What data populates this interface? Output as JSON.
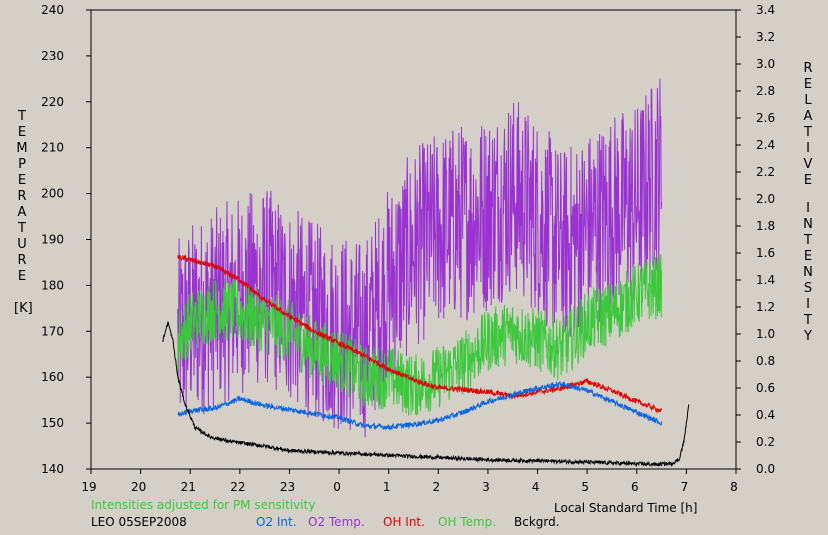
{
  "chart_data": {
    "type": "line",
    "x_axis": {
      "title": "Local Standard Time [h]",
      "ticks": [
        19,
        20,
        21,
        22,
        23,
        0,
        1,
        2,
        3,
        4,
        5,
        6,
        7,
        8
      ],
      "tick_labels": [
        "19",
        "20",
        "21",
        "22",
        "23",
        "0",
        "1",
        "2",
        "3",
        "4",
        "5",
        "6",
        "7",
        "8"
      ],
      "range": [
        19,
        32
      ]
    },
    "y_left": {
      "title_letters": [
        "T",
        "E",
        "M",
        "P",
        "E",
        "R",
        "A",
        "T",
        "U",
        "R",
        "E"
      ],
      "unit": "[K]",
      "ticks": [
        140,
        150,
        160,
        170,
        180,
        190,
        200,
        210,
        220,
        230,
        240
      ],
      "range": [
        140,
        240
      ]
    },
    "y_right": {
      "title_word1": [
        "R",
        "E",
        "L",
        "A",
        "T",
        "I",
        "V",
        "E"
      ],
      "title_word2": [
        "I",
        "N",
        "T",
        "E",
        "N",
        "S",
        "I",
        "T",
        "Y"
      ],
      "ticks": [
        "0.0",
        "0.2",
        "0.4",
        "0.6",
        "0.8",
        "1.0",
        "1.2",
        "1.4",
        "1.6",
        "1.8",
        "2.0",
        "2.2",
        "2.4",
        "2.6",
        "2.8",
        "3.0",
        "3.2",
        "3.4"
      ],
      "range": [
        0,
        3.4
      ]
    },
    "note": "Intensities adjusted for PM sensitivity",
    "station": "LEO 05SEP2008",
    "series": [
      {
        "name": "O2 Int.",
        "color": "#0a64e0",
        "axis": "right",
        "noise": 0.02,
        "x": [
          20.75,
          21.0,
          21.5,
          22.0,
          22.5,
          23.0,
          23.5,
          24.0,
          24.5,
          25.0,
          25.5,
          26.0,
          26.5,
          27.0,
          27.5,
          28.0,
          28.5,
          29.0,
          29.5,
          30.0,
          30.5
        ],
        "y": [
          0.4,
          0.43,
          0.45,
          0.52,
          0.47,
          0.44,
          0.41,
          0.38,
          0.32,
          0.31,
          0.33,
          0.36,
          0.42,
          0.5,
          0.55,
          0.6,
          0.63,
          0.58,
          0.5,
          0.42,
          0.34
        ]
      },
      {
        "name": "O2 Temp.",
        "color": "#9a32d2",
        "axis": "left",
        "noise": 22,
        "x": [
          20.75,
          21.0,
          21.5,
          22.0,
          22.5,
          23.0,
          23.5,
          24.0,
          24.5,
          25.0,
          25.5,
          26.0,
          26.5,
          27.0,
          27.5,
          28.0,
          28.5,
          29.0,
          29.5,
          30.0,
          30.5
        ],
        "y": [
          168,
          172,
          175,
          178,
          180,
          176,
          172,
          170,
          168,
          180,
          188,
          192,
          194,
          196,
          200,
          195,
          188,
          192,
          196,
          198,
          206
        ]
      },
      {
        "name": "OH Int.",
        "color": "#e00000",
        "axis": "right",
        "noise": 0.02,
        "x": [
          20.75,
          21.0,
          21.5,
          22.0,
          22.5,
          23.0,
          23.5,
          24.0,
          24.5,
          25.0,
          25.5,
          26.0,
          26.5,
          27.0,
          27.5,
          28.0,
          28.5,
          29.0,
          29.5,
          30.0,
          30.5
        ],
        "y": [
          1.57,
          1.55,
          1.5,
          1.4,
          1.25,
          1.13,
          1.02,
          0.93,
          0.84,
          0.74,
          0.66,
          0.6,
          0.59,
          0.57,
          0.54,
          0.57,
          0.6,
          0.65,
          0.58,
          0.5,
          0.43
        ]
      },
      {
        "name": "OH Temp.",
        "color": "#3cc83c",
        "axis": "left",
        "noise": 7,
        "x": [
          20.75,
          21.0,
          21.5,
          22.0,
          22.5,
          23.0,
          23.5,
          24.0,
          24.5,
          25.0,
          25.5,
          26.0,
          26.5,
          27.0,
          27.5,
          28.0,
          28.5,
          29.0,
          29.5,
          30.0,
          30.5
        ],
        "y": [
          168,
          172,
          175,
          174,
          172,
          170,
          166,
          164,
          160,
          160,
          158,
          160,
          163,
          168,
          170,
          168,
          166,
          172,
          174,
          178,
          180
        ]
      },
      {
        "name": "Bckgrd.",
        "color": "#000000",
        "axis": "left",
        "noise": 0.4,
        "x": [
          20.45,
          20.55,
          20.65,
          20.75,
          20.9,
          21.1,
          21.4,
          21.8,
          22.5,
          23.0,
          24.0,
          25.0,
          26.0,
          27.0,
          28.0,
          29.0,
          29.8,
          30.4,
          30.7,
          30.85,
          30.95,
          31.05
        ],
        "y": [
          168,
          172,
          168,
          160,
          154,
          149,
          147,
          146,
          145,
          144,
          143.5,
          143,
          142.5,
          142,
          141.8,
          141.5,
          141.2,
          141,
          141.2,
          142,
          146,
          154
        ]
      }
    ]
  }
}
